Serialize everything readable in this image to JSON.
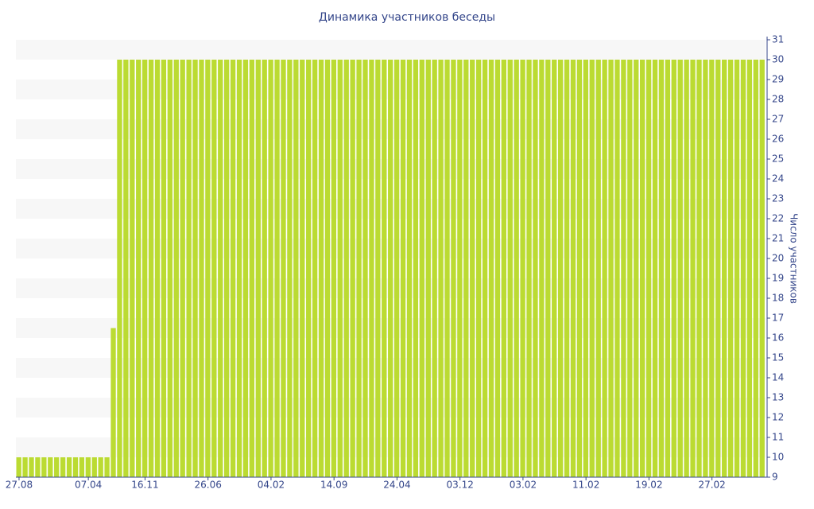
{
  "chart_data": {
    "type": "bar",
    "title": "Динамика участников беседы",
    "y_axis_label": "Число участников",
    "y_axis_side": "right",
    "categories": [
      "27.08",
      null,
      null,
      null,
      null,
      null,
      null,
      null,
      null,
      null,
      null,
      "07.04",
      null,
      null,
      null,
      null,
      null,
      null,
      null,
      null,
      "16.11",
      null,
      null,
      null,
      null,
      null,
      null,
      null,
      null,
      null,
      "26.06",
      null,
      null,
      null,
      null,
      null,
      null,
      null,
      null,
      null,
      "04.02",
      null,
      null,
      null,
      null,
      null,
      null,
      null,
      null,
      null,
      "14.09",
      null,
      null,
      null,
      null,
      null,
      null,
      null,
      null,
      null,
      "24.04",
      null,
      null,
      null,
      null,
      null,
      null,
      null,
      null,
      null,
      "03.12",
      null,
      null,
      null,
      null,
      null,
      null,
      null,
      null,
      null,
      "03.02",
      null,
      null,
      null,
      null,
      null,
      null,
      null,
      null,
      null,
      "11.02",
      null,
      null,
      null,
      null,
      null,
      null,
      null,
      null,
      null,
      "19.02",
      null,
      null,
      null,
      null,
      null,
      null,
      null,
      null,
      null,
      "27.02",
      null,
      null,
      null,
      null,
      null,
      null,
      null,
      null
    ],
    "values": [
      10,
      10,
      10,
      10,
      10,
      10,
      10,
      10,
      10,
      10,
      10,
      10,
      10,
      10,
      10,
      16.5,
      30,
      30,
      30,
      30,
      30,
      30,
      30,
      30,
      30,
      30,
      30,
      30,
      30,
      30,
      30,
      30,
      30,
      30,
      30,
      30,
      30,
      30,
      30,
      30,
      30,
      30,
      30,
      30,
      30,
      30,
      30,
      30,
      30,
      30,
      30,
      30,
      30,
      30,
      30,
      30,
      30,
      30,
      30,
      30,
      30,
      30,
      30,
      30,
      30,
      30,
      30,
      30,
      30,
      30,
      30,
      30,
      30,
      30,
      30,
      30,
      30,
      30,
      30,
      30,
      30,
      30,
      30,
      30,
      30,
      30,
      30,
      30,
      30,
      30,
      30,
      30,
      30,
      30,
      30,
      30,
      30,
      30,
      30,
      30,
      30,
      30,
      30,
      30,
      30,
      30,
      30,
      30,
      30,
      30,
      30,
      30,
      30,
      30,
      30,
      30,
      30,
      30,
      30
    ],
    "color": "#bbdb32",
    "ylim": [
      9,
      31
    ],
    "yticks": [
      9,
      10,
      11,
      12,
      13,
      14,
      15,
      16,
      17,
      18,
      19,
      20,
      21,
      22,
      23,
      24,
      25,
      26,
      27,
      28,
      29,
      30,
      31
    ],
    "grid": "bands"
  }
}
